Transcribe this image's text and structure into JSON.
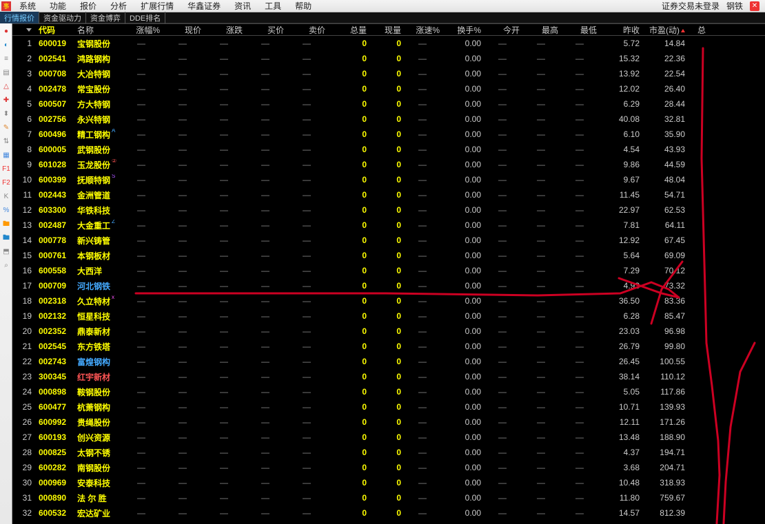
{
  "menubar": {
    "items": [
      "系统",
      "功能",
      "报价",
      "分析",
      "扩展行情",
      "华鑫证券",
      "资讯",
      "工具",
      "帮助"
    ],
    "status_login": "证券交易未登录",
    "status_sector": "钢铁"
  },
  "tabs": {
    "items": [
      "行情报价",
      "资金驱动力",
      "资金博弈",
      "DDE排名"
    ],
    "active_index": 0
  },
  "columns": [
    {
      "key": "idx",
      "label": "",
      "cls": "c-idx"
    },
    {
      "key": "code",
      "label": "代码",
      "cls": "c-code"
    },
    {
      "key": "name",
      "label": "名称",
      "cls": "c-name"
    },
    {
      "key": "zf",
      "label": "涨幅%",
      "cls": "c-zf"
    },
    {
      "key": "xj",
      "label": "现价",
      "cls": "c-xj"
    },
    {
      "key": "zd",
      "label": "涨跌",
      "cls": "c-zd"
    },
    {
      "key": "mj",
      "label": "买价",
      "cls": "c-mj"
    },
    {
      "key": "mc",
      "label": "卖价",
      "cls": "c-mc"
    },
    {
      "key": "zl",
      "label": "总量",
      "cls": "c-zl"
    },
    {
      "key": "xl",
      "label": "现量",
      "cls": "c-xl"
    },
    {
      "key": "zs",
      "label": "涨速%",
      "cls": "c-zs"
    },
    {
      "key": "hs",
      "label": "换手%",
      "cls": "c-hs"
    },
    {
      "key": "jk",
      "label": "今开",
      "cls": "c-jk"
    },
    {
      "key": "zg",
      "label": "最高",
      "cls": "c-zg"
    },
    {
      "key": "zd2",
      "label": "最低",
      "cls": "c-zd2"
    },
    {
      "key": "zs2",
      "label": "昨收",
      "cls": "c-zs2"
    },
    {
      "key": "sy",
      "label": "市盈(动)",
      "cls": "c-sy",
      "sort": "up"
    },
    {
      "key": "last",
      "label": "总",
      "cls": "c-last"
    }
  ],
  "rows": [
    {
      "idx": 1,
      "code": "600019",
      "name": "宝钢股份",
      "zs2": "5.72",
      "sy": "14.84"
    },
    {
      "idx": 2,
      "code": "002541",
      "name": "鸿路钢构",
      "zs2": "15.32",
      "sy": "22.36"
    },
    {
      "idx": 3,
      "code": "000708",
      "name": "大冶特钢",
      "zs2": "13.92",
      "sy": "22.54"
    },
    {
      "idx": 4,
      "code": "002478",
      "name": "常宝股份",
      "zs2": "12.02",
      "sy": "26.40"
    },
    {
      "idx": 5,
      "code": "600507",
      "name": "方大特钢",
      "zs2": "6.29",
      "sy": "28.44"
    },
    {
      "idx": 6,
      "code": "002756",
      "name": "永兴特钢",
      "zs2": "40.08",
      "sy": "32.81"
    },
    {
      "idx": 7,
      "code": "600496",
      "name": "精工钢构",
      "badge": "A",
      "badge_cls": "badge-a",
      "zs2": "6.10",
      "sy": "35.90"
    },
    {
      "idx": 8,
      "code": "600005",
      "name": "武钢股份",
      "zs2": "4.54",
      "sy": "43.93"
    },
    {
      "idx": 9,
      "code": "601028",
      "name": "玉龙股份",
      "badge": "②",
      "badge_cls": "badge-2",
      "zs2": "9.86",
      "sy": "44.59"
    },
    {
      "idx": 10,
      "code": "600399",
      "name": "抚顺特钢",
      "badge": "S",
      "badge_cls": "badge-s",
      "zs2": "9.67",
      "sy": "48.04"
    },
    {
      "idx": 11,
      "code": "002443",
      "name": "金洲管道",
      "zs2": "11.45",
      "sy": "54.71"
    },
    {
      "idx": 12,
      "code": "603300",
      "name": "华铁科技",
      "zs2": "22.97",
      "sy": "62.53"
    },
    {
      "idx": 13,
      "code": "002487",
      "name": "大金重工",
      "badge": "Z",
      "badge_cls": "badge-z",
      "zs2": "7.81",
      "sy": "64.11"
    },
    {
      "idx": 14,
      "code": "000778",
      "name": "新兴铸管",
      "zs2": "12.92",
      "sy": "67.45"
    },
    {
      "idx": 15,
      "code": "000761",
      "name": "本钢板材",
      "zs2": "5.64",
      "sy": "69.09"
    },
    {
      "idx": 16,
      "code": "600558",
      "name": "大西洋",
      "zs2": "7.29",
      "sy": "70.12"
    },
    {
      "idx": 17,
      "code": "000709",
      "name": "河北钢铁",
      "name_cls": "name-blue",
      "zs2": "4.93",
      "sy": "73.32"
    },
    {
      "idx": 18,
      "code": "002318",
      "name": "久立特材",
      "badge": "x",
      "badge_cls": "badge-x",
      "zs2": "36.50",
      "sy": "83.36"
    },
    {
      "idx": 19,
      "code": "002132",
      "name": "恒星科技",
      "zs2": "6.28",
      "sy": "85.47"
    },
    {
      "idx": 20,
      "code": "002352",
      "name": "鼎泰新材",
      "zs2": "23.03",
      "sy": "96.98"
    },
    {
      "idx": 21,
      "code": "002545",
      "name": "东方铁塔",
      "zs2": "26.79",
      "sy": "99.80"
    },
    {
      "idx": 22,
      "code": "002743",
      "name": "富煌钢构",
      "name_cls": "name-blue",
      "zs2": "26.45",
      "sy": "100.55"
    },
    {
      "idx": 23,
      "code": "300345",
      "name": "红宇新材",
      "name_cls": "name-red",
      "zs2": "38.14",
      "sy": "110.12"
    },
    {
      "idx": 24,
      "code": "000898",
      "name": "鞍钢股份",
      "zs2": "5.05",
      "sy": "117.86"
    },
    {
      "idx": 25,
      "code": "600477",
      "name": "杭萧钢构",
      "zs2": "10.71",
      "sy": "139.93"
    },
    {
      "idx": 26,
      "code": "600992",
      "name": "贵绳股份",
      "zs2": "12.11",
      "sy": "171.26"
    },
    {
      "idx": 27,
      "code": "600193",
      "name": "创兴资源",
      "zs2": "13.48",
      "sy": "188.90"
    },
    {
      "idx": 28,
      "code": "000825",
      "name": "太钢不锈",
      "zs2": "4.37",
      "sy": "194.71"
    },
    {
      "idx": 29,
      "code": "600282",
      "name": "南钢股份",
      "zs2": "3.68",
      "sy": "204.71"
    },
    {
      "idx": 30,
      "code": "000969",
      "name": "安泰科技",
      "zs2": "10.48",
      "sy": "318.93"
    },
    {
      "idx": 31,
      "code": "000890",
      "name": "法 尔 胜",
      "zs2": "11.80",
      "sy": "759.67"
    },
    {
      "idx": 32,
      "code": "600532",
      "name": "宏达矿业",
      "zs2": "14.57",
      "sy": "812.39"
    }
  ],
  "defaults": {
    "dash": "—",
    "zero": "0",
    "zero2": "0.00"
  },
  "sidebar": {
    "tools": [
      {
        "name": "tool-1",
        "glyph": "●",
        "color": "#d33"
      },
      {
        "name": "tool-2",
        "glyph": "◐",
        "color": "#28c"
      },
      {
        "name": "tool-3",
        "glyph": "≡",
        "color": "#888"
      },
      {
        "name": "tool-4",
        "glyph": "▤",
        "color": "#888"
      },
      {
        "name": "tool-5",
        "glyph": "△",
        "color": "#d33"
      },
      {
        "name": "tool-6",
        "glyph": "✚",
        "color": "#d33"
      },
      {
        "name": "tool-7",
        "glyph": "⬍",
        "color": "#888"
      },
      {
        "name": "tool-8",
        "glyph": "✎",
        "color": "#d83"
      },
      {
        "name": "tool-9",
        "glyph": "⇅",
        "color": "#888"
      },
      {
        "name": "tool-10",
        "glyph": "▦",
        "color": "#48d"
      },
      {
        "name": "tool-11",
        "glyph": "F1",
        "color": "#e33"
      },
      {
        "name": "tool-12",
        "glyph": "F2",
        "color": "#e33"
      },
      {
        "name": "tool-13",
        "glyph": "K",
        "color": "#888"
      },
      {
        "name": "tool-14",
        "glyph": "%",
        "color": "#48d"
      },
      {
        "name": "tool-15",
        "glyph": "🖿",
        "color": "#f90"
      },
      {
        "name": "tool-16",
        "glyph": "🖿",
        "color": "#28c"
      },
      {
        "name": "tool-17",
        "glyph": "⬒",
        "color": "#888"
      },
      {
        "name": "tool-18",
        "glyph": "⌕",
        "color": "#888"
      }
    ]
  },
  "annotation": {
    "stroke": "#cc0022",
    "stroke_width": 3,
    "paths": [
      "M 197 426 L 560 426 L 780 429 L 900 426 L 945 410 L 970 420 L 985 432",
      "M 898 404 L 960 426 L 985 432",
      "M 990 380 L 960 420 L 945 470",
      "M 1020 70 L 1018 230 L 1023 420 L 1025 498",
      "M 1025 498 L 1033 560 L 1042 640 L 1044 690 L 1040 760",
      "M 1095 498 L 1074 540 L 1060 620 L 1053 700 L 1050 760"
    ]
  }
}
